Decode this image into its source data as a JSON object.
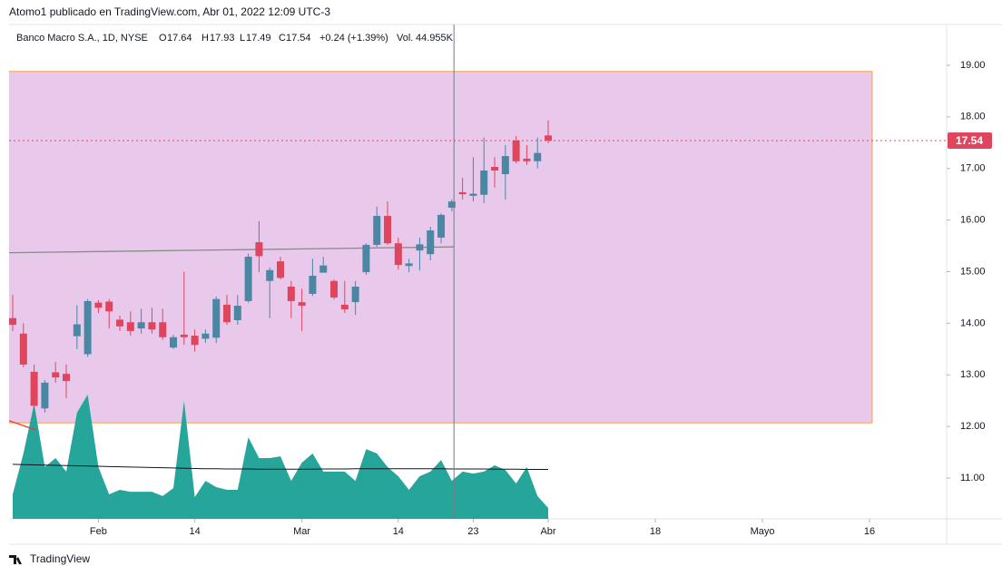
{
  "header": "Atomo1 publicado en TradingView.com, Abr 01, 2022 12:09 UTC-3",
  "footer": "TradingView",
  "chart_data": {
    "type": "candlestick",
    "symbol": "Banco Macro S.A., 1D, NYSE",
    "legend": {
      "open": "O",
      "high": "H",
      "low": "L",
      "close": "C",
      "change": "+0.24 (+1.39%)",
      "volume": "Vol.",
      "volume_value": "44.955K"
    },
    "categories": [
      null,
      null,
      null,
      null,
      null,
      null,
      null,
      null,
      null,
      null,
      null,
      null,
      null,
      null,
      null,
      null,
      null,
      null,
      null,
      null,
      null,
      null,
      null,
      null,
      null,
      null,
      null,
      null,
      null,
      null,
      null,
      null,
      null,
      null,
      null,
      null,
      null,
      null,
      null,
      null,
      null,
      null,
      null,
      null,
      null,
      null,
      null,
      null,
      null,
      null,
      null
    ],
    "open": [
      14.1,
      13.8,
      13.06,
      12.35,
      13.05,
      13.02,
      13.75,
      13.4,
      14.4,
      14.42,
      14.07,
      14.02,
      13.9,
      14.02,
      14.02,
      13.53,
      13.78,
      13.76,
      13.7,
      13.72,
      14.36,
      14.06,
      14.43,
      15.57,
      14.82,
      15.2,
      14.71,
      14.41,
      14.57,
      14.98,
      14.82,
      14.36,
      14.41,
      14.99,
      15.52,
      16.08,
      15.55,
      15.11,
      15.41,
      15.34,
      15.66,
      16.24,
      16.54,
      16.47,
      16.49,
      17.03,
      16.89,
      17.54,
      17.19,
      17.14,
      17.64
    ],
    "high": [
      14.55,
      14.0,
      13.2,
      12.9,
      13.25,
      13.2,
      14.35,
      14.47,
      14.45,
      14.47,
      14.15,
      14.23,
      14.28,
      14.3,
      14.28,
      13.78,
      15.0,
      13.88,
      13.88,
      14.52,
      14.55,
      14.55,
      15.35,
      15.98,
      15.08,
      15.29,
      14.82,
      14.67,
      15.25,
      15.29,
      14.85,
      14.82,
      14.82,
      15.55,
      16.26,
      16.36,
      15.66,
      15.25,
      15.66,
      15.87,
      16.13,
      16.4,
      16.82,
      17.22,
      17.6,
      17.22,
      17.45,
      17.63,
      17.45,
      17.6,
      17.93
    ],
    "low": [
      13.85,
      13.15,
      12.2,
      12.27,
      12.85,
      12.55,
      13.5,
      13.35,
      14.2,
      13.9,
      13.85,
      13.76,
      13.8,
      13.8,
      13.68,
      13.5,
      13.58,
      13.45,
      13.62,
      13.62,
      13.97,
      13.97,
      14.4,
      14.99,
      14.1,
      14.85,
      14.1,
      13.85,
      14.53,
      14.99,
      14.46,
      14.2,
      14.16,
      14.94,
      15.48,
      15.52,
      15.04,
      14.99,
      15.02,
      15.22,
      15.55,
      16.17,
      16.4,
      16.36,
      16.33,
      16.63,
      16.4,
      17.1,
      17.07,
      17.0,
      17.49
    ],
    "close": [
      13.97,
      13.2,
      12.4,
      12.85,
      12.95,
      12.88,
      13.98,
      14.43,
      14.3,
      14.23,
      13.94,
      13.85,
      14.02,
      13.88,
      13.73,
      13.73,
      13.73,
      13.58,
      13.8,
      14.47,
      14.02,
      14.34,
      15.29,
      15.3,
      15.03,
      14.88,
      14.43,
      14.34,
      14.92,
      15.12,
      14.5,
      14.27,
      14.71,
      15.52,
      16.08,
      15.55,
      15.13,
      15.16,
      15.53,
      15.8,
      16.1,
      16.36,
      16.5,
      16.51,
      16.96,
      16.96,
      17.24,
      17.14,
      17.14,
      17.3,
      17.54
    ],
    "volume": [
      101000,
      270000,
      476000,
      214000,
      251000,
      195000,
      438000,
      513000,
      214000,
      101000,
      120000,
      112000,
      112000,
      112000,
      94000,
      127000,
      487000,
      90000,
      157000,
      131000,
      120000,
      120000,
      337000,
      251000,
      251000,
      258000,
      157000,
      232000,
      270000,
      195000,
      195000,
      195000,
      157000,
      288000,
      270000,
      214000,
      176000,
      120000,
      176000,
      195000,
      243000,
      157000,
      195000,
      187000,
      195000,
      221000,
      202000,
      146000,
      214000,
      94000,
      44955
    ],
    "volume_ma": [
      225000,
      224000,
      223000,
      222000,
      221000,
      220000,
      219000,
      218000,
      217000,
      216000,
      215000,
      214000,
      213000,
      212000,
      211000,
      210000,
      209000,
      208000,
      207000,
      207000,
      206000,
      206000,
      206000,
      205000,
      205000,
      205000,
      205000,
      205000,
      205000,
      206000,
      206000,
      206000,
      207000,
      207000,
      207000,
      207000,
      207000,
      207000,
      207000,
      207000,
      207000,
      206000,
      206000,
      206000,
      206000,
      205000,
      205000,
      205000,
      204000,
      204000,
      204000
    ],
    "volume_ylim": [
      0,
      1000000
    ],
    "up_color": "#4a87a3",
    "down_color": "#e0455e",
    "volume_color": "#26a69a",
    "volume_ma_color": "#131722",
    "ylim": [
      10.21,
      19.79
    ],
    "yticks": [
      {
        "value": 11,
        "label": "11.00"
      },
      {
        "value": 12,
        "label": "12.00"
      },
      {
        "value": 13,
        "label": "13.00"
      },
      {
        "value": 14,
        "label": "14.00"
      },
      {
        "value": 15,
        "label": "15.00"
      },
      {
        "value": 16,
        "label": "16.00"
      },
      {
        "value": 17,
        "label": "17.00"
      },
      {
        "value": 18,
        "label": "18.00"
      },
      {
        "value": 19,
        "label": "19.00"
      }
    ],
    "xlim": [
      -0.34,
      87.2
    ],
    "xticks": [
      {
        "value": 8,
        "label": "Feb"
      },
      {
        "value": 17,
        "label": "14"
      },
      {
        "value": 27,
        "label": "Mar"
      },
      {
        "value": 36,
        "label": "14"
      },
      {
        "value": 43,
        "label": "23"
      },
      {
        "value": 50,
        "label": "Abr"
      },
      {
        "value": 60,
        "label": "18"
      },
      {
        "value": 70,
        "label": "Mayo"
      },
      {
        "value": 80,
        "label": "16"
      }
    ],
    "zone": {
      "x": [
        -3,
        80.25
      ],
      "y": [
        12.07,
        18.88
      ],
      "fill": "#e8c9ec",
      "border": "#f5a04a"
    },
    "trend_lines": [
      {
        "x": [
          -3,
          41.2
        ],
        "y": [
          15.36,
          15.48
        ],
        "color": "#8a8a8a"
      },
      {
        "x": [
          -1,
          2.2
        ],
        "y": [
          12.16,
          11.93
        ],
        "color": "#f23a2e"
      }
    ],
    "crosshair_x": 41.2,
    "price_line": {
      "value": 17.54,
      "color": "#e0455e"
    }
  }
}
